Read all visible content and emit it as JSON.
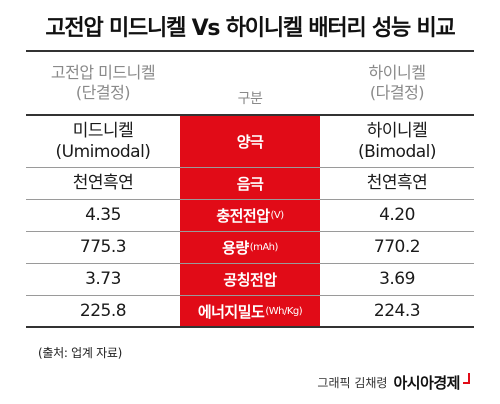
{
  "title": "고전압 미드니켈 Vs 하이니켈 배터리 성능 비교",
  "header": {
    "left_line1": "고전압 미드니켈",
    "left_line2": "(단결정)",
    "middle": "구분",
    "right_line1": "하이니켈",
    "right_line2": "(다결정)"
  },
  "rows": [
    {
      "left_line1": "미드니켈",
      "left_line2": "(Umimodal)",
      "label": "양극",
      "unit": "",
      "right_line1": "하이니켈",
      "right_line2": "(Bimodal)"
    },
    {
      "left_line1": "천연흑연",
      "left_line2": "",
      "label": "음극",
      "unit": "",
      "right_line1": "천연흑연",
      "right_line2": ""
    },
    {
      "left_line1": "4.35",
      "left_line2": "",
      "label": "충전전압",
      "unit": "(V)",
      "right_line1": "4.20",
      "right_line2": ""
    },
    {
      "left_line1": "775.3",
      "left_line2": "",
      "label": "용량",
      "unit": "(mAh)",
      "right_line1": "770.2",
      "right_line2": ""
    },
    {
      "left_line1": "3.73",
      "left_line2": "",
      "label": "공칭전압",
      "unit": "",
      "right_line1": "3.69",
      "right_line2": ""
    },
    {
      "left_line1": "225.8",
      "left_line2": "",
      "label": "에너지밀도",
      "unit": "(Wh/Kg)",
      "right_line1": "224.3",
      "right_line2": ""
    }
  ],
  "source": "(출처: 업계 자료)",
  "credit": "그래픽 김채령",
  "brand": "아시아경제",
  "colors": {
    "accent": "#e10b17",
    "text": "#1a1a1a",
    "muted": "#8a8a8a"
  }
}
